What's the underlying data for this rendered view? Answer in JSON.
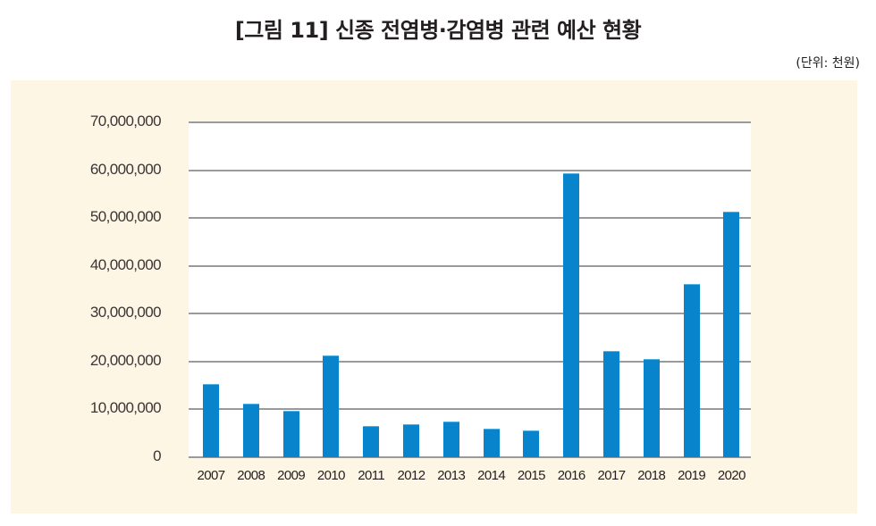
{
  "header": {
    "title": "[그림 11] 신종 전염병·감염병 관련 예산 현황",
    "unit": "(단위: 천원)"
  },
  "colors": {
    "bar": "#0884cc",
    "panel_background": "#fdf6e4",
    "gridline": "#9a9a9a"
  },
  "chart_data": {
    "type": "bar",
    "title": "[그림 11] 신종 전염병·감염병 관련 예산 현황",
    "unit_note": "(단위: 천원)",
    "xlabel": "",
    "ylabel": "",
    "categories": [
      "2007",
      "2008",
      "2009",
      "2010",
      "2011",
      "2012",
      "2013",
      "2014",
      "2015",
      "2016",
      "2017",
      "2018",
      "2019",
      "2020"
    ],
    "values": [
      15300000,
      11200000,
      9700000,
      21300000,
      6500000,
      6900000,
      7500000,
      6000000,
      5600000,
      59400000,
      22200000,
      20500000,
      36200000,
      51300000
    ],
    "ylim": [
      0,
      70000000
    ],
    "yticks": [
      0,
      10000000,
      20000000,
      30000000,
      40000000,
      50000000,
      60000000,
      70000000
    ],
    "ytick_labels": [
      "0",
      "10,000,000",
      "20,000,000",
      "30,000,000",
      "40,000,000",
      "50,000,000",
      "60,000,000",
      "70,000,000"
    ],
    "grid": true,
    "legend": null
  }
}
